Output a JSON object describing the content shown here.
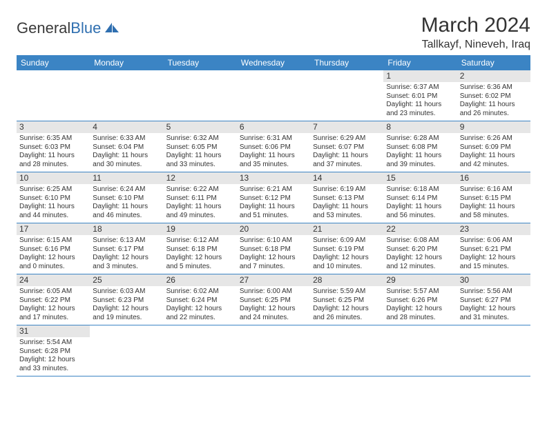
{
  "logo": {
    "text1": "General",
    "text2": "Blue"
  },
  "title": "March 2024",
  "location": "Tallkayf, Nineveh, Iraq",
  "colors": {
    "header_bg": "#3b84c4",
    "header_text": "#ffffff",
    "daynum_bg": "#e6e6e6",
    "border": "#3b84c4",
    "text": "#333333",
    "logo_blue": "#2f6fb0"
  },
  "weekdays": [
    "Sunday",
    "Monday",
    "Tuesday",
    "Wednesday",
    "Thursday",
    "Friday",
    "Saturday"
  ],
  "weeks": [
    [
      null,
      null,
      null,
      null,
      null,
      {
        "n": "1",
        "sr": "6:37 AM",
        "ss": "6:01 PM",
        "dl": "11 hours and 23 minutes."
      },
      {
        "n": "2",
        "sr": "6:36 AM",
        "ss": "6:02 PM",
        "dl": "11 hours and 26 minutes."
      }
    ],
    [
      {
        "n": "3",
        "sr": "6:35 AM",
        "ss": "6:03 PM",
        "dl": "11 hours and 28 minutes."
      },
      {
        "n": "4",
        "sr": "6:33 AM",
        "ss": "6:04 PM",
        "dl": "11 hours and 30 minutes."
      },
      {
        "n": "5",
        "sr": "6:32 AM",
        "ss": "6:05 PM",
        "dl": "11 hours and 33 minutes."
      },
      {
        "n": "6",
        "sr": "6:31 AM",
        "ss": "6:06 PM",
        "dl": "11 hours and 35 minutes."
      },
      {
        "n": "7",
        "sr": "6:29 AM",
        "ss": "6:07 PM",
        "dl": "11 hours and 37 minutes."
      },
      {
        "n": "8",
        "sr": "6:28 AM",
        "ss": "6:08 PM",
        "dl": "11 hours and 39 minutes."
      },
      {
        "n": "9",
        "sr": "6:26 AM",
        "ss": "6:09 PM",
        "dl": "11 hours and 42 minutes."
      }
    ],
    [
      {
        "n": "10",
        "sr": "6:25 AM",
        "ss": "6:10 PM",
        "dl": "11 hours and 44 minutes."
      },
      {
        "n": "11",
        "sr": "6:24 AM",
        "ss": "6:10 PM",
        "dl": "11 hours and 46 minutes."
      },
      {
        "n": "12",
        "sr": "6:22 AM",
        "ss": "6:11 PM",
        "dl": "11 hours and 49 minutes."
      },
      {
        "n": "13",
        "sr": "6:21 AM",
        "ss": "6:12 PM",
        "dl": "11 hours and 51 minutes."
      },
      {
        "n": "14",
        "sr": "6:19 AM",
        "ss": "6:13 PM",
        "dl": "11 hours and 53 minutes."
      },
      {
        "n": "15",
        "sr": "6:18 AM",
        "ss": "6:14 PM",
        "dl": "11 hours and 56 minutes."
      },
      {
        "n": "16",
        "sr": "6:16 AM",
        "ss": "6:15 PM",
        "dl": "11 hours and 58 minutes."
      }
    ],
    [
      {
        "n": "17",
        "sr": "6:15 AM",
        "ss": "6:16 PM",
        "dl": "12 hours and 0 minutes."
      },
      {
        "n": "18",
        "sr": "6:13 AM",
        "ss": "6:17 PM",
        "dl": "12 hours and 3 minutes."
      },
      {
        "n": "19",
        "sr": "6:12 AM",
        "ss": "6:18 PM",
        "dl": "12 hours and 5 minutes."
      },
      {
        "n": "20",
        "sr": "6:10 AM",
        "ss": "6:18 PM",
        "dl": "12 hours and 7 minutes."
      },
      {
        "n": "21",
        "sr": "6:09 AM",
        "ss": "6:19 PM",
        "dl": "12 hours and 10 minutes."
      },
      {
        "n": "22",
        "sr": "6:08 AM",
        "ss": "6:20 PM",
        "dl": "12 hours and 12 minutes."
      },
      {
        "n": "23",
        "sr": "6:06 AM",
        "ss": "6:21 PM",
        "dl": "12 hours and 15 minutes."
      }
    ],
    [
      {
        "n": "24",
        "sr": "6:05 AM",
        "ss": "6:22 PM",
        "dl": "12 hours and 17 minutes."
      },
      {
        "n": "25",
        "sr": "6:03 AM",
        "ss": "6:23 PM",
        "dl": "12 hours and 19 minutes."
      },
      {
        "n": "26",
        "sr": "6:02 AM",
        "ss": "6:24 PM",
        "dl": "12 hours and 22 minutes."
      },
      {
        "n": "27",
        "sr": "6:00 AM",
        "ss": "6:25 PM",
        "dl": "12 hours and 24 minutes."
      },
      {
        "n": "28",
        "sr": "5:59 AM",
        "ss": "6:25 PM",
        "dl": "12 hours and 26 minutes."
      },
      {
        "n": "29",
        "sr": "5:57 AM",
        "ss": "6:26 PM",
        "dl": "12 hours and 28 minutes."
      },
      {
        "n": "30",
        "sr": "5:56 AM",
        "ss": "6:27 PM",
        "dl": "12 hours and 31 minutes."
      }
    ],
    [
      {
        "n": "31",
        "sr": "5:54 AM",
        "ss": "6:28 PM",
        "dl": "12 hours and 33 minutes."
      },
      null,
      null,
      null,
      null,
      null,
      null
    ]
  ],
  "labels": {
    "sunrise": "Sunrise: ",
    "sunset": "Sunset: ",
    "daylight": "Daylight: "
  }
}
